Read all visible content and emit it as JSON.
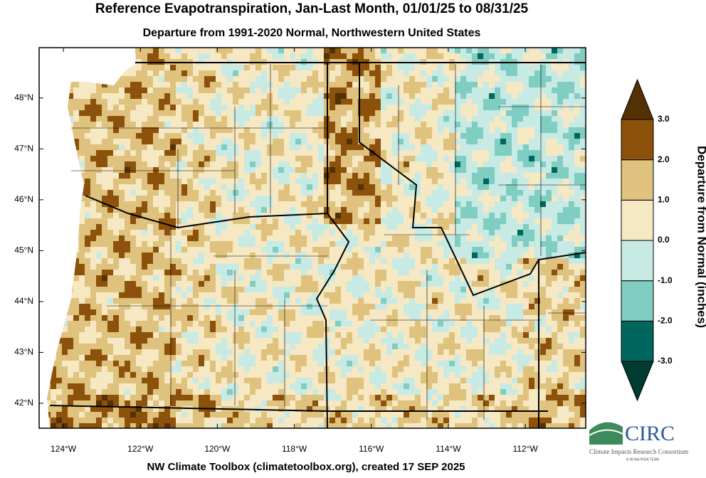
{
  "title": "Reference Evapotranspiration, Jan-Last Month, 01/01/25 to 08/31/25",
  "subtitle": "Departure from 1991-2020 Normal, Northwestern United States",
  "footer": "NW Climate Toolbox (climatetoolbox.org), created 17 SEP 2025",
  "map": {
    "xlim": [
      -124.63,
      -110.43
    ],
    "ylim": [
      41.51,
      48.99
    ],
    "xticks": [
      {
        "value": -124,
        "label": "124°W"
      },
      {
        "value": -122,
        "label": "122°W"
      },
      {
        "value": -120,
        "label": "120°W"
      },
      {
        "value": -118,
        "label": "118°W"
      },
      {
        "value": -116,
        "label": "116°W"
      },
      {
        "value": -114,
        "label": "114°W"
      },
      {
        "value": -112,
        "label": "112°W"
      }
    ],
    "yticks": [
      {
        "value": 48,
        "label": "48°N"
      },
      {
        "value": 47,
        "label": "47°N"
      },
      {
        "value": 46,
        "label": "46°N"
      },
      {
        "value": 45,
        "label": "45°N"
      },
      {
        "value": 44,
        "label": "44°N"
      },
      {
        "value": 43,
        "label": "43°N"
      },
      {
        "value": 42,
        "label": "42°N"
      }
    ]
  },
  "colorbar": {
    "title": "Departure from Normal (inches)",
    "levels": [
      {
        "value": -3,
        "label": "-3.0"
      },
      {
        "value": -2,
        "label": "-2.0"
      },
      {
        "value": -1,
        "label": "-1.0"
      },
      {
        "value": 0,
        "label": "0.0"
      },
      {
        "value": 1,
        "label": "1.0"
      },
      {
        "value": 2,
        "label": "2.0"
      },
      {
        "value": 3,
        "label": "3.0"
      }
    ],
    "colors": [
      "#003c30",
      "#01665e",
      "#80cdc1",
      "#c7eae5",
      "#f6e8c3",
      "#dfc27d",
      "#8c510a",
      "#543005"
    ]
  },
  "logo": {
    "name": "CIRC",
    "full_name": "Climate Impacts Research Consortium",
    "tagline": "A NOAA RISA TEAM"
  }
}
